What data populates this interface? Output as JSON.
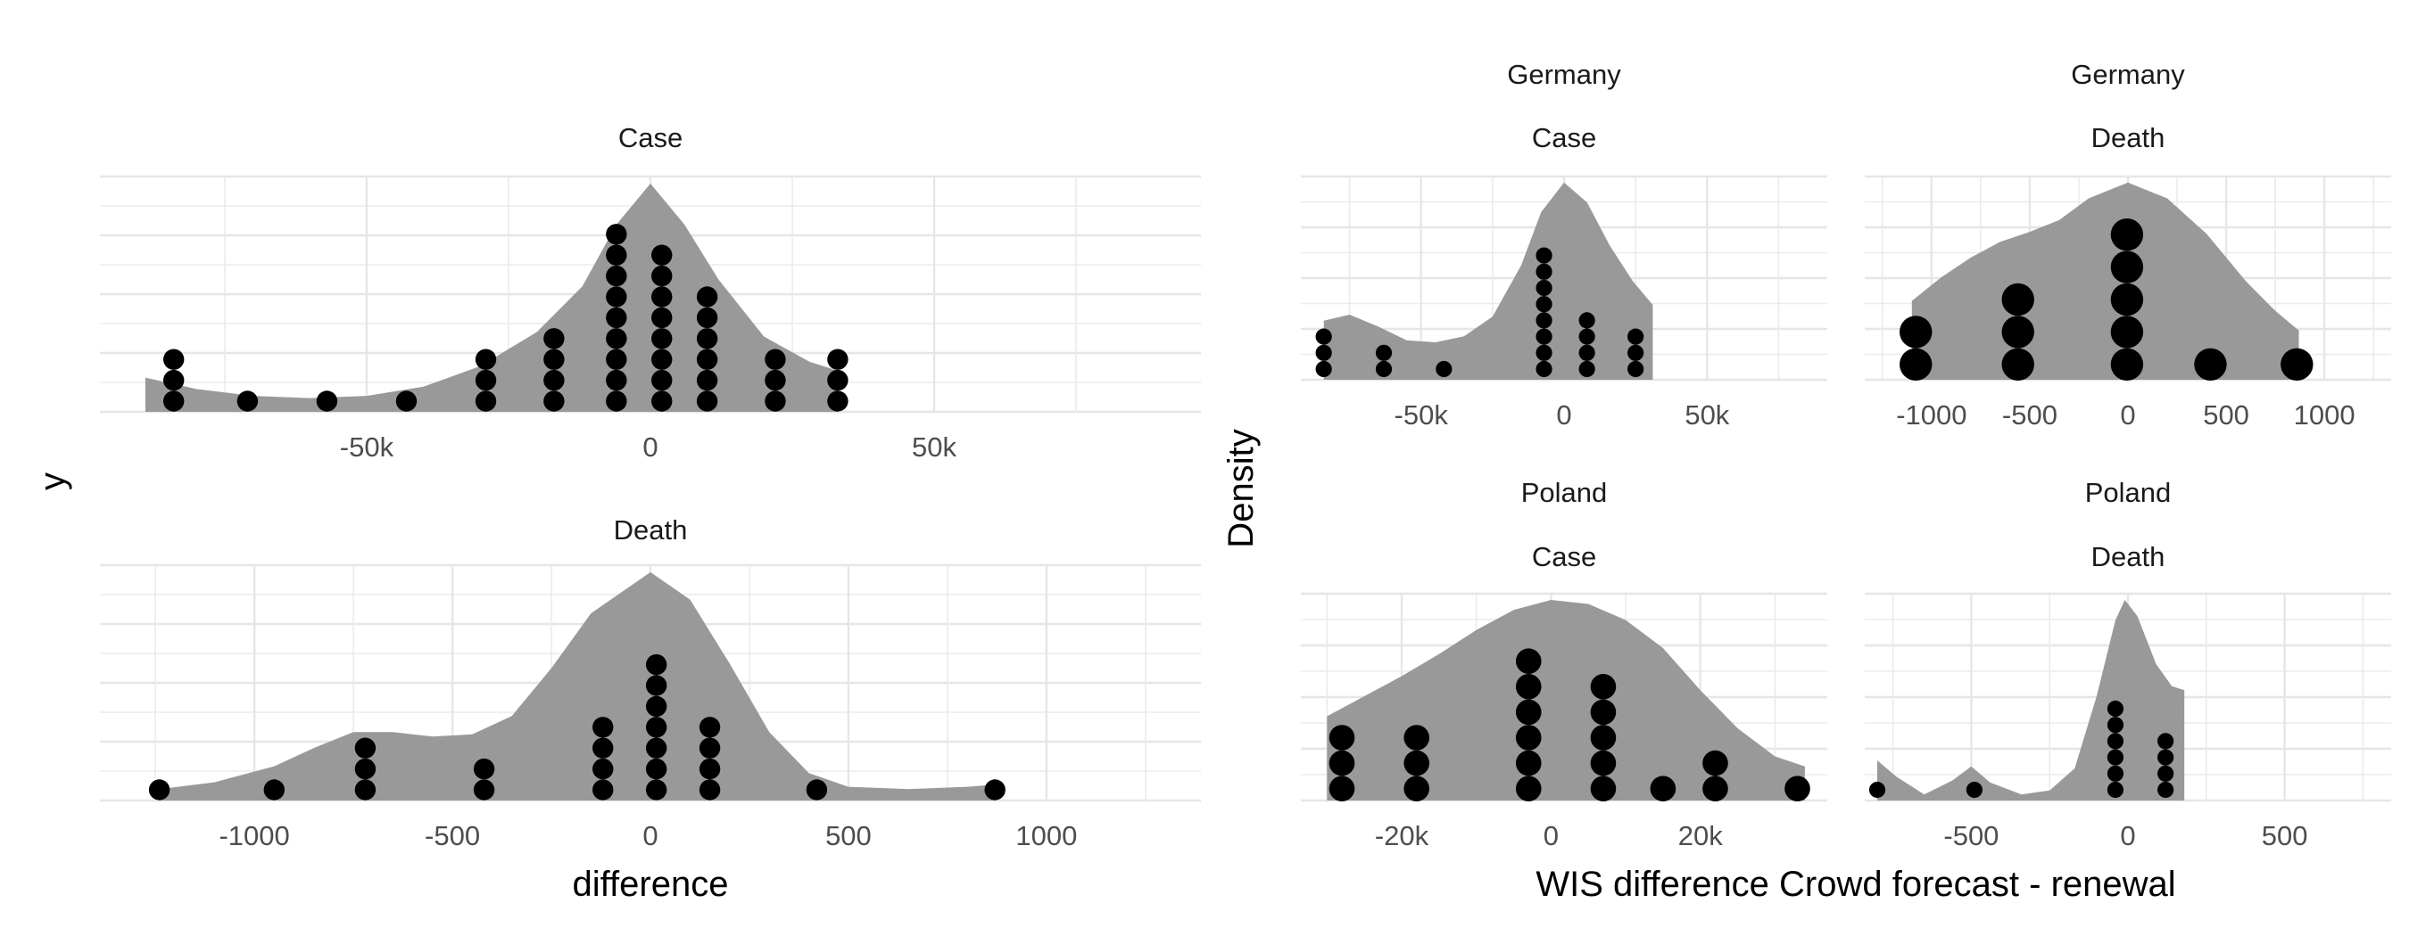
{
  "labels": {
    "left_xlabel": "difference",
    "left_ylabel": "y",
    "right_xlabel": "WIS difference Crowd forecast - renewal",
    "right_ylabel": "Density"
  },
  "chart_data": [
    {
      "type": "area",
      "id": "left-case",
      "strip": [
        "Case"
      ],
      "xlim": [
        -97000,
        97000
      ],
      "x_major": [
        -50000,
        0,
        50000
      ],
      "x_minor": [
        -75000,
        -25000,
        25000,
        75000
      ],
      "x_tick_labels": [
        "-50k",
        "0",
        "50k"
      ],
      "density": [
        [
          -89000,
          0.15
        ],
        [
          -80000,
          0.1
        ],
        [
          -70000,
          0.07
        ],
        [
          -60000,
          0.06
        ],
        [
          -50000,
          0.07
        ],
        [
          -40000,
          0.11
        ],
        [
          -30000,
          0.2
        ],
        [
          -20000,
          0.35
        ],
        [
          -12000,
          0.55
        ],
        [
          -6000,
          0.82
        ],
        [
          0,
          1.0
        ],
        [
          6000,
          0.82
        ],
        [
          12000,
          0.58
        ],
        [
          20000,
          0.33
        ],
        [
          28000,
          0.22
        ],
        [
          33000,
          0.18
        ]
      ],
      "dotsize": 0.9,
      "dots": [
        {
          "x": -84000,
          "n": 3
        },
        {
          "x": -71000,
          "n": 1
        },
        {
          "x": -57000,
          "n": 1
        },
        {
          "x": -43000,
          "n": 1
        },
        {
          "x": -29000,
          "n": 3
        },
        {
          "x": -17000,
          "n": 4
        },
        {
          "x": -6000,
          "n": 9
        },
        {
          "x": 2000,
          "n": 8
        },
        {
          "x": 10000,
          "n": 6
        },
        {
          "x": 22000,
          "n": 3
        },
        {
          "x": 33000,
          "n": 3
        }
      ]
    },
    {
      "type": "area",
      "id": "left-death",
      "strip": [
        "Death"
      ],
      "xlim": [
        -1390,
        1390
      ],
      "x_major": [
        -1000,
        -500,
        0,
        500,
        1000
      ],
      "x_minor": [
        -1250,
        -750,
        -250,
        250,
        750,
        1250
      ],
      "x_tick_labels": [
        "-1000",
        "-500",
        "0",
        "500",
        "1000"
      ],
      "density": [
        [
          -1240,
          0.05
        ],
        [
          -1100,
          0.08
        ],
        [
          -950,
          0.15
        ],
        [
          -850,
          0.23
        ],
        [
          -750,
          0.3
        ],
        [
          -650,
          0.3
        ],
        [
          -550,
          0.28
        ],
        [
          -450,
          0.29
        ],
        [
          -350,
          0.37
        ],
        [
          -250,
          0.58
        ],
        [
          -150,
          0.82
        ],
        [
          0,
          1.0
        ],
        [
          100,
          0.88
        ],
        [
          200,
          0.6
        ],
        [
          300,
          0.3
        ],
        [
          400,
          0.12
        ],
        [
          500,
          0.06
        ],
        [
          650,
          0.05
        ],
        [
          800,
          0.06
        ],
        [
          870,
          0.07
        ]
      ],
      "dotsize": 0.9,
      "dots": [
        {
          "x": -1240,
          "n": 1
        },
        {
          "x": -950,
          "n": 1
        },
        {
          "x": -720,
          "n": 3
        },
        {
          "x": -420,
          "n": 2
        },
        {
          "x": -120,
          "n": 4
        },
        {
          "x": 15,
          "n": 7
        },
        {
          "x": 150,
          "n": 4
        },
        {
          "x": 420,
          "n": 1
        },
        {
          "x": 870,
          "n": 1
        }
      ]
    },
    {
      "type": "area",
      "id": "germany-case",
      "strip": [
        "Germany",
        "Case"
      ],
      "xlim": [
        -92000,
        92000
      ],
      "x_major": [
        -50000,
        0,
        50000
      ],
      "x_minor": [
        -75000,
        -25000,
        25000,
        75000
      ],
      "x_tick_labels": [
        "-50k",
        "0",
        "50k"
      ],
      "density": [
        [
          -84000,
          0.3
        ],
        [
          -75000,
          0.33
        ],
        [
          -65000,
          0.27
        ],
        [
          -55000,
          0.2
        ],
        [
          -45000,
          0.19
        ],
        [
          -35000,
          0.22
        ],
        [
          -25000,
          0.32
        ],
        [
          -15000,
          0.58
        ],
        [
          -8000,
          0.85
        ],
        [
          0,
          1.0
        ],
        [
          8000,
          0.9
        ],
        [
          16000,
          0.68
        ],
        [
          24000,
          0.5
        ],
        [
          31000,
          0.38
        ]
      ],
      "dotsize": 0.7,
      "dots": [
        {
          "x": -84000,
          "n": 3
        },
        {
          "x": -63000,
          "n": 2
        },
        {
          "x": -42000,
          "n": 1
        },
        {
          "x": -7000,
          "n": 8
        },
        {
          "x": 8000,
          "n": 4
        },
        {
          "x": 25000,
          "n": 3
        }
      ]
    },
    {
      "type": "area",
      "id": "germany-death",
      "strip": [
        "Germany",
        "Death"
      ],
      "xlim": [
        -1340,
        1340
      ],
      "x_major": [
        -1000,
        -500,
        0,
        500,
        1000
      ],
      "x_minor": [
        -1250,
        -750,
        -250,
        250,
        750,
        1250
      ],
      "x_tick_labels": [
        "-1000",
        "-500",
        "0",
        "500",
        "1000"
      ],
      "density": [
        [
          -1100,
          0.4
        ],
        [
          -950,
          0.52
        ],
        [
          -800,
          0.62
        ],
        [
          -650,
          0.7
        ],
        [
          -500,
          0.75
        ],
        [
          -350,
          0.81
        ],
        [
          -200,
          0.92
        ],
        [
          0,
          1.0
        ],
        [
          200,
          0.92
        ],
        [
          400,
          0.74
        ],
        [
          600,
          0.5
        ],
        [
          750,
          0.35
        ],
        [
          870,
          0.25
        ]
      ],
      "dotsize": 1.4,
      "dots": [
        {
          "x": -1080,
          "n": 2
        },
        {
          "x": -560,
          "n": 3
        },
        {
          "x": -5,
          "n": 5
        },
        {
          "x": 420,
          "n": 1
        },
        {
          "x": 860,
          "n": 1
        }
      ]
    },
    {
      "type": "area",
      "id": "poland-case",
      "strip": [
        "Poland",
        "Case"
      ],
      "xlim": [
        -33500,
        37000
      ],
      "x_major": [
        -20000,
        0,
        20000
      ],
      "x_minor": [
        -30000,
        -10000,
        10000,
        30000
      ],
      "x_tick_labels": [
        "-20k",
        "0",
        "20k"
      ],
      "density": [
        [
          -30000,
          0.42
        ],
        [
          -25000,
          0.52
        ],
        [
          -20000,
          0.62
        ],
        [
          -15000,
          0.73
        ],
        [
          -10000,
          0.85
        ],
        [
          -5000,
          0.95
        ],
        [
          0,
          1.0
        ],
        [
          5000,
          0.98
        ],
        [
          10000,
          0.9
        ],
        [
          15000,
          0.76
        ],
        [
          20000,
          0.55
        ],
        [
          25000,
          0.36
        ],
        [
          30000,
          0.22
        ],
        [
          34000,
          0.17
        ]
      ],
      "dotsize": 1.1,
      "dots": [
        {
          "x": -28000,
          "n": 3
        },
        {
          "x": -18000,
          "n": 3
        },
        {
          "x": -3000,
          "n": 6
        },
        {
          "x": 7000,
          "n": 5
        },
        {
          "x": 15000,
          "n": 1
        },
        {
          "x": 22000,
          "n": 2
        },
        {
          "x": 33000,
          "n": 1
        }
      ]
    },
    {
      "type": "area",
      "id": "poland-death",
      "strip": [
        "Poland",
        "Death"
      ],
      "xlim": [
        -840,
        840
      ],
      "x_major": [
        -500,
        0,
        500
      ],
      "x_minor": [
        -750,
        -250,
        250,
        750
      ],
      "x_tick_labels": [
        "-500",
        "0",
        "500"
      ],
      "density": [
        [
          -800,
          0.2
        ],
        [
          -740,
          0.12
        ],
        [
          -650,
          0.03
        ],
        [
          -560,
          0.1
        ],
        [
          -500,
          0.17
        ],
        [
          -440,
          0.09
        ],
        [
          -340,
          0.03
        ],
        [
          -250,
          0.05
        ],
        [
          -170,
          0.16
        ],
        [
          -100,
          0.52
        ],
        [
          -40,
          0.9
        ],
        [
          -10,
          1.0
        ],
        [
          30,
          0.92
        ],
        [
          90,
          0.68
        ],
        [
          140,
          0.57
        ],
        [
          180,
          0.55
        ]
      ],
      "dotsize": 0.7,
      "dots": [
        {
          "x": -800,
          "n": 1
        },
        {
          "x": -490,
          "n": 1
        },
        {
          "x": -40,
          "n": 6
        },
        {
          "x": 120,
          "n": 4
        }
      ]
    }
  ]
}
